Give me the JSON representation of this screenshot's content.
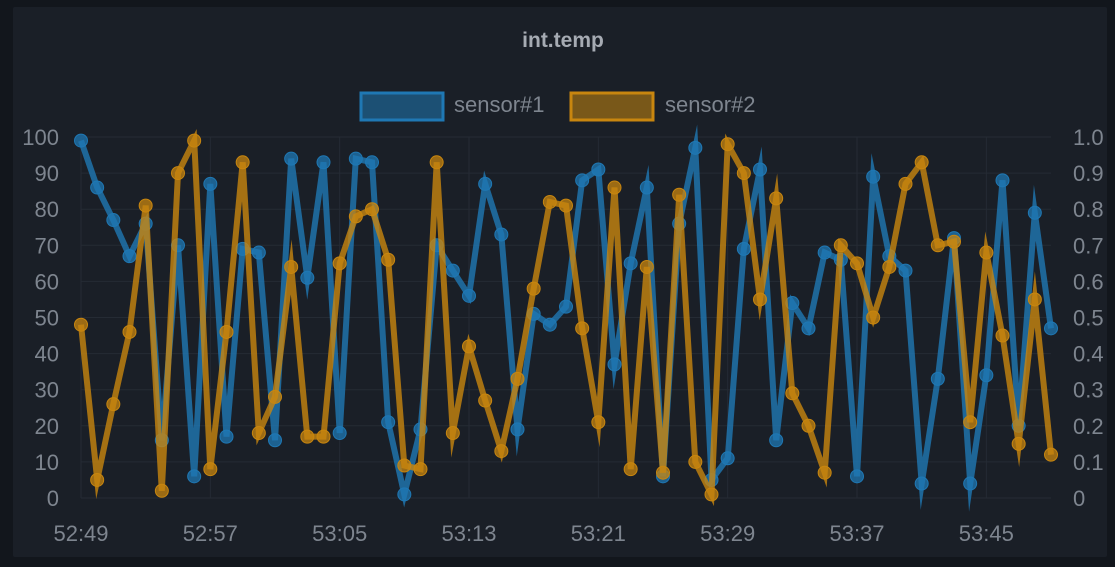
{
  "chart_data": {
    "type": "line",
    "title": "int.temp",
    "x": [
      "52:49",
      "52:50",
      "52:51",
      "52:52",
      "52:53",
      "52:54",
      "52:55",
      "52:56",
      "52:57",
      "52:58",
      "52:59",
      "53:00",
      "53:01",
      "53:02",
      "53:03",
      "53:04",
      "53:05",
      "53:06",
      "53:07",
      "53:08",
      "53:09",
      "53:10",
      "53:11",
      "53:12",
      "53:13",
      "53:14",
      "53:15",
      "53:16",
      "53:17",
      "53:18",
      "53:19",
      "53:20",
      "53:21",
      "53:22",
      "53:23",
      "53:24",
      "53:25",
      "53:26",
      "53:27",
      "53:28",
      "53:29",
      "53:30",
      "53:31",
      "53:32",
      "53:33",
      "53:34",
      "53:35",
      "53:36",
      "53:37",
      "53:38",
      "53:39",
      "53:40",
      "53:41",
      "53:42",
      "53:43",
      "53:44",
      "53:45",
      "53:46",
      "53:47",
      "53:48",
      "53:49"
    ],
    "x_ticks": [
      "52:49",
      "52:57",
      "53:05",
      "53:13",
      "53:21",
      "53:29",
      "53:37",
      "53:45"
    ],
    "y_left_ticks": [
      "0",
      "10",
      "20",
      "30",
      "40",
      "50",
      "60",
      "70",
      "80",
      "90",
      "100"
    ],
    "y_right_ticks": [
      "0",
      "0.1",
      "0.2",
      "0.3",
      "0.4",
      "0.5",
      "0.6",
      "0.7",
      "0.8",
      "0.9",
      "1.0"
    ],
    "ylim": [
      0,
      100
    ],
    "grid": true,
    "legend_position": "top-center",
    "series": [
      {
        "name": "sensor#1",
        "color": "#1f78b4",
        "values": [
          99,
          86,
          77,
          67,
          76,
          16,
          70,
          6,
          87,
          17,
          69,
          68,
          16,
          94,
          61,
          93,
          18,
          94,
          93,
          21,
          1,
          19,
          70,
          63,
          56,
          87,
          73,
          19,
          51,
          48,
          53,
          88,
          91,
          37,
          65,
          86,
          6,
          76,
          97,
          5,
          11,
          69,
          91,
          16,
          54,
          47,
          68,
          66,
          6,
          89,
          67,
          63,
          4,
          33,
          72,
          4,
          34,
          88,
          20,
          79,
          47
        ]
      },
      {
        "name": "sensor#2",
        "color": "#c8860f",
        "values": [
          48,
          5,
          26,
          46,
          81,
          2,
          90,
          99,
          8,
          46,
          93,
          18,
          28,
          64,
          17,
          17,
          65,
          78,
          80,
          66,
          9,
          8,
          93,
          18,
          42,
          27,
          13,
          33,
          58,
          82,
          81,
          47,
          21,
          86,
          8,
          64,
          7,
          84,
          10,
          1,
          98,
          90,
          55,
          83,
          29,
          20,
          7,
          70,
          65,
          50,
          64,
          87,
          93,
          70,
          71,
          21,
          68,
          45,
          15,
          55,
          12
        ]
      }
    ]
  }
}
